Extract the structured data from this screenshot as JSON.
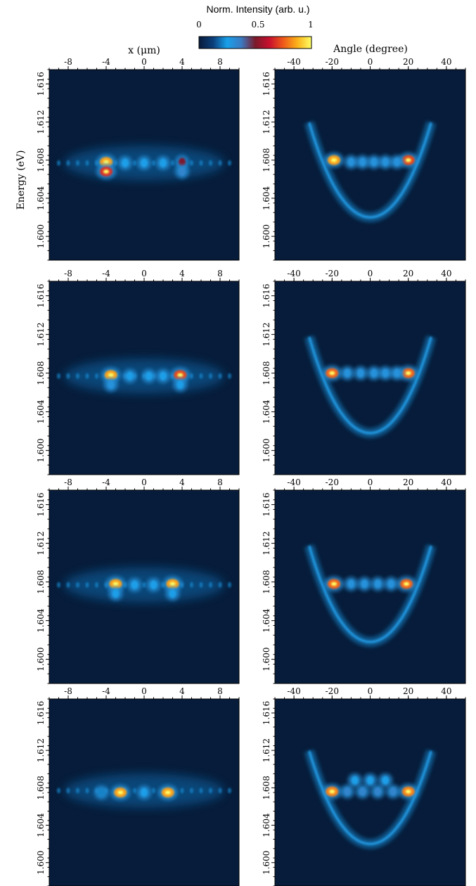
{
  "chart_data": {
    "type": "heatmap",
    "colorbar": {
      "title": "Norm. Intensity (arb. u.)",
      "ticks": [
        "0",
        "0.5",
        "1"
      ],
      "range": [
        0,
        1
      ],
      "colors": [
        "#061a3a",
        "#0b3e7a",
        "#19a0ea",
        "#3a7bc2",
        "#7a1a2a",
        "#c8102e",
        "#ef5a1a",
        "#fbb21a",
        "#ffff66"
      ]
    },
    "background_color": "#071c3a",
    "energy_label": "Energy (eV)",
    "energy_ticks": [
      "1.600",
      "1.604",
      "1.608",
      "1.612",
      "1.616"
    ],
    "energy_range": [
      1.5975,
      1.6175
    ],
    "left_column": {
      "xlabel": "x (μm)",
      "ticks": [
        "-8",
        "-4",
        "0",
        "4",
        "8"
      ],
      "xlim": [
        -10,
        10
      ]
    },
    "right_column": {
      "xlabel": "Angle (degree)",
      "ticks": [
        "-40",
        "-20",
        "0",
        "20",
        "40"
      ],
      "xlim": [
        -50,
        50
      ]
    },
    "rows": [
      {
        "real_space": {
          "spots": [
            {
              "x": -4,
              "e": 1.6078,
              "i": 1.0
            },
            {
              "x": -4,
              "e": 1.6068,
              "i": 0.8
            },
            {
              "x": 4,
              "e": 1.6078,
              "i": 0.6
            },
            {
              "x": 4,
              "e": 1.6068,
              "i": 0.4
            },
            {
              "x": -2,
              "e": 1.6077,
              "i": 0.3
            },
            {
              "x": 0,
              "e": 1.6077,
              "i": 0.3
            },
            {
              "x": 2,
              "e": 1.6077,
              "i": 0.3
            }
          ]
        },
        "k_space": {
          "parabola_bottom": 1.602,
          "spots": [
            {
              "x": -19,
              "e": 1.608,
              "i": 1.0
            },
            {
              "x": 20,
              "e": 1.608,
              "i": 0.85
            },
            {
              "x": -10,
              "e": 1.6078,
              "i": 0.35
            },
            {
              "x": -4,
              "e": 1.6078,
              "i": 0.35
            },
            {
              "x": 2,
              "e": 1.6078,
              "i": 0.35
            },
            {
              "x": 8,
              "e": 1.6078,
              "i": 0.35
            },
            {
              "x": 14,
              "e": 1.6078,
              "i": 0.35
            }
          ]
        }
      },
      {
        "real_space": {
          "spots": [
            {
              "x": -3.5,
              "e": 1.6078,
              "i": 1.0
            },
            {
              "x": 3.8,
              "e": 1.6078,
              "i": 0.85
            },
            {
              "x": -3.5,
              "e": 1.6068,
              "i": 0.35
            },
            {
              "x": 3.8,
              "e": 1.6068,
              "i": 0.3
            },
            {
              "x": -1.5,
              "e": 1.6077,
              "i": 0.3
            },
            {
              "x": 0.5,
              "e": 1.6077,
              "i": 0.3
            },
            {
              "x": 2,
              "e": 1.6077,
              "i": 0.3
            }
          ]
        },
        "k_space": {
          "parabola_bottom": 1.6018,
          "spots": [
            {
              "x": -20,
              "e": 1.608,
              "i": 0.9
            },
            {
              "x": 20,
              "e": 1.608,
              "i": 0.9
            },
            {
              "x": -12,
              "e": 1.608,
              "i": 0.35
            },
            {
              "x": -5,
              "e": 1.608,
              "i": 0.35
            },
            {
              "x": 2,
              "e": 1.608,
              "i": 0.35
            },
            {
              "x": 8,
              "e": 1.608,
              "i": 0.35
            },
            {
              "x": 14,
              "e": 1.608,
              "i": 0.35
            }
          ]
        }
      },
      {
        "real_space": {
          "spots": [
            {
              "x": -3,
              "e": 1.6078,
              "i": 1.0
            },
            {
              "x": 3,
              "e": 1.6078,
              "i": 1.0
            },
            {
              "x": -1,
              "e": 1.6077,
              "i": 0.3
            },
            {
              "x": 1,
              "e": 1.6077,
              "i": 0.3
            },
            {
              "x": -3,
              "e": 1.6068,
              "i": 0.3
            },
            {
              "x": 3,
              "e": 1.6068,
              "i": 0.3
            }
          ]
        },
        "k_space": {
          "parabola_bottom": 1.6018,
          "spots": [
            {
              "x": -19,
              "e": 1.6078,
              "i": 0.9
            },
            {
              "x": 19,
              "e": 1.6078,
              "i": 0.9
            },
            {
              "x": -10,
              "e": 1.6078,
              "i": 0.35
            },
            {
              "x": -3,
              "e": 1.6078,
              "i": 0.35
            },
            {
              "x": 4,
              "e": 1.6078,
              "i": 0.35
            },
            {
              "x": 11,
              "e": 1.6078,
              "i": 0.35
            }
          ]
        }
      },
      {
        "real_space": {
          "spots": [
            {
              "x": -2.5,
              "e": 1.6075,
              "i": 1.0
            },
            {
              "x": 2.5,
              "e": 1.6075,
              "i": 1.0
            },
            {
              "x": 0,
              "e": 1.6075,
              "i": 0.3
            },
            {
              "x": -4.5,
              "e": 1.6075,
              "i": 0.25
            }
          ]
        },
        "k_space": {
          "parabola_bottom": 1.602,
          "spots": [
            {
              "x": -20,
              "e": 1.6076,
              "i": 0.95
            },
            {
              "x": 20,
              "e": 1.6076,
              "i": 0.95
            },
            {
              "x": -12,
              "e": 1.6076,
              "i": 0.4
            },
            {
              "x": -4,
              "e": 1.6076,
              "i": 0.4
            },
            {
              "x": 4,
              "e": 1.6076,
              "i": 0.4
            },
            {
              "x": 12,
              "e": 1.6076,
              "i": 0.4
            },
            {
              "x": -8,
              "e": 1.6088,
              "i": 0.3
            },
            {
              "x": 0,
              "e": 1.6088,
              "i": 0.3
            },
            {
              "x": 8,
              "e": 1.6088,
              "i": 0.3
            }
          ]
        }
      }
    ]
  }
}
